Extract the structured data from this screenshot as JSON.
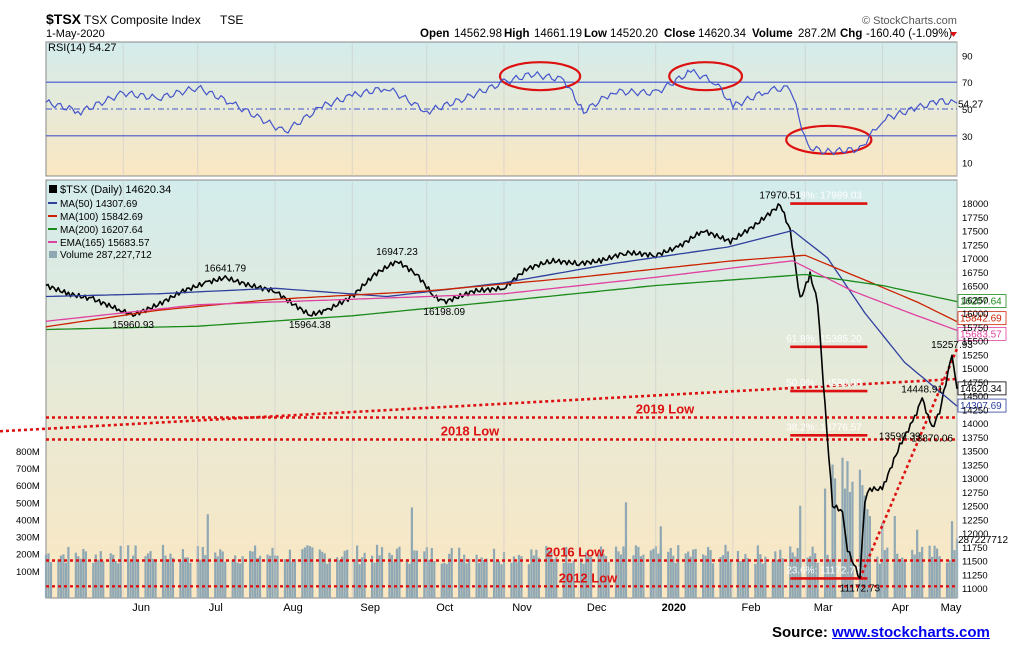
{
  "header": {
    "symbol": "$TSX",
    "name": "TSX Composite Index",
    "exchange": "TSE",
    "date": "1-May-2020",
    "open_label": "Open",
    "open": "14562.98",
    "high_label": "High",
    "high": "14661.19",
    "low_label": "Low",
    "low": "14520.20",
    "close_label": "Close",
    "close": "14620.34",
    "volume_label": "Volume",
    "volume": "287.2M",
    "chg_label": "Chg",
    "chg": "-160.40 (-1.09%)",
    "watermark": "© StockCharts.com"
  },
  "source": {
    "label": "Source:",
    "link": "www.stockcharts.com"
  },
  "colors": {
    "price": "#000000",
    "ma50": "#2e3f9e",
    "ma100": "#cc2200",
    "ma200": "#1a8a1a",
    "ema165": "#e040a0",
    "volume": "#8fa8b4",
    "rsi": "#4455cc",
    "annotation": "#dd1111",
    "panel_top": "#d3ecec",
    "panel_bottom": "#fbe7c2"
  },
  "chart_data": [
    {
      "type": "line",
      "panel": "rsi",
      "legend": "RSI(14) 54.27",
      "current_label": "54.27",
      "ylim": [
        0,
        100
      ],
      "yticks": [
        "90",
        "70",
        "50",
        "30",
        "10"
      ],
      "reference_lines": [
        70,
        50,
        30
      ],
      "points": [
        {
          "x": "2019-05-01",
          "y": 55
        },
        {
          "x": "2019-05-15",
          "y": 48
        },
        {
          "x": "2019-06-01",
          "y": 62
        },
        {
          "x": "2019-06-15",
          "y": 58
        },
        {
          "x": "2019-07-01",
          "y": 66
        },
        {
          "x": "2019-07-15",
          "y": 54
        },
        {
          "x": "2019-08-05",
          "y": 33
        },
        {
          "x": "2019-08-20",
          "y": 52
        },
        {
          "x": "2019-09-01",
          "y": 60
        },
        {
          "x": "2019-09-15",
          "y": 66
        },
        {
          "x": "2019-10-01",
          "y": 48
        },
        {
          "x": "2019-10-15",
          "y": 57
        },
        {
          "x": "2019-11-01",
          "y": 70
        },
        {
          "x": "2019-11-12",
          "y": 76
        },
        {
          "x": "2019-11-25",
          "y": 72
        },
        {
          "x": "2019-12-03",
          "y": 48
        },
        {
          "x": "2019-12-15",
          "y": 63
        },
        {
          "x": "2020-01-01",
          "y": 62
        },
        {
          "x": "2020-01-15",
          "y": 78
        },
        {
          "x": "2020-01-25",
          "y": 70
        },
        {
          "x": "2020-02-01",
          "y": 52
        },
        {
          "x": "2020-02-15",
          "y": 64
        },
        {
          "x": "2020-02-24",
          "y": 66
        },
        {
          "x": "2020-03-02",
          "y": 22
        },
        {
          "x": "2020-03-09",
          "y": 18
        },
        {
          "x": "2020-03-16",
          "y": 19
        },
        {
          "x": "2020-03-23",
          "y": 20
        },
        {
          "x": "2020-04-01",
          "y": 42
        },
        {
          "x": "2020-04-15",
          "y": 51
        },
        {
          "x": "2020-04-24",
          "y": 56
        },
        {
          "x": "2020-05-01",
          "y": 54.27
        }
      ],
      "highlighted_zones": [
        {
          "start": "2019-11-01",
          "end": "2019-11-30",
          "level": 70
        },
        {
          "start": "2020-01-08",
          "end": "2020-02-03",
          "level": 70
        },
        {
          "start": "2020-02-24",
          "end": "2020-03-26",
          "level": 30
        }
      ]
    },
    {
      "type": "line",
      "panel": "price",
      "title": "$TSX (Daily) 14620.34",
      "ylim": [
        10850,
        18300
      ],
      "yticks": [
        "18000",
        "17750",
        "17500",
        "17250",
        "17000",
        "16750",
        "16500",
        "16250",
        "16000",
        "15750",
        "15500",
        "15250",
        "15000",
        "14750",
        "14500",
        "14250",
        "14000",
        "13750",
        "13500",
        "13250",
        "13000",
        "12750",
        "12500",
        "12250",
        "12000",
        "11750",
        "11500",
        "11250",
        "11000"
      ],
      "xticks": [
        {
          "label": "Jun",
          "x": "2019-06-01"
        },
        {
          "label": "Jul",
          "x": "2019-07-01"
        },
        {
          "label": "Aug",
          "x": "2019-08-01"
        },
        {
          "label": "Sep",
          "x": "2019-09-01"
        },
        {
          "label": "Oct",
          "x": "2019-10-01"
        },
        {
          "label": "Nov",
          "x": "2019-11-01"
        },
        {
          "label": "Dec",
          "x": "2019-12-01"
        },
        {
          "label": "2020",
          "x": "2020-01-01"
        },
        {
          "label": "Feb",
          "x": "2020-02-01"
        },
        {
          "label": "Mar",
          "x": "2020-03-01"
        },
        {
          "label": "Apr",
          "x": "2020-04-01"
        },
        {
          "label": "May",
          "x": "2020-05-01"
        }
      ],
      "series": [
        {
          "name": "$TSX (Daily) 14620.34",
          "color": "#000000",
          "width": 1.6,
          "points": [
            {
              "x": "2019-05-01",
              "y": 16500
            },
            {
              "x": "2019-05-10",
              "y": 16350
            },
            {
              "x": "2019-05-20",
              "y": 16250
            },
            {
              "x": "2019-05-31",
              "y": 16050
            },
            {
              "x": "2019-06-05",
              "y": 15961
            },
            {
              "x": "2019-06-15",
              "y": 16150
            },
            {
              "x": "2019-06-25",
              "y": 16400
            },
            {
              "x": "2019-07-05",
              "y": 16560
            },
            {
              "x": "2019-07-12",
              "y": 16642
            },
            {
              "x": "2019-07-22",
              "y": 16500
            },
            {
              "x": "2019-08-01",
              "y": 16400
            },
            {
              "x": "2019-08-07",
              "y": 16200
            },
            {
              "x": "2019-08-15",
              "y": 15964
            },
            {
              "x": "2019-08-22",
              "y": 16050
            },
            {
              "x": "2019-09-01",
              "y": 16300
            },
            {
              "x": "2019-09-10",
              "y": 16700
            },
            {
              "x": "2019-09-19",
              "y": 16947
            },
            {
              "x": "2019-09-27",
              "y": 16700
            },
            {
              "x": "2019-10-04",
              "y": 16300
            },
            {
              "x": "2019-10-08",
              "y": 16198
            },
            {
              "x": "2019-10-20",
              "y": 16400
            },
            {
              "x": "2019-11-01",
              "y": 16450
            },
            {
              "x": "2019-11-10",
              "y": 16800
            },
            {
              "x": "2019-11-20",
              "y": 16950
            },
            {
              "x": "2019-12-01",
              "y": 16900
            },
            {
              "x": "2019-12-10",
              "y": 16950
            },
            {
              "x": "2019-12-20",
              "y": 17100
            },
            {
              "x": "2020-01-01",
              "y": 17050
            },
            {
              "x": "2020-01-10",
              "y": 17200
            },
            {
              "x": "2020-01-20",
              "y": 17500
            },
            {
              "x": "2020-01-31",
              "y": 17300
            },
            {
              "x": "2020-02-10",
              "y": 17600
            },
            {
              "x": "2020-02-20",
              "y": 17971
            },
            {
              "x": "2020-02-24",
              "y": 17500
            },
            {
              "x": "2020-02-28",
              "y": 16250
            },
            {
              "x": "2020-03-03",
              "y": 16700
            },
            {
              "x": "2020-03-06",
              "y": 16200
            },
            {
              "x": "2020-03-09",
              "y": 14300
            },
            {
              "x": "2020-03-12",
              "y": 12500
            },
            {
              "x": "2020-03-16",
              "y": 12400
            },
            {
              "x": "2020-03-18",
              "y": 11700
            },
            {
              "x": "2020-03-23",
              "y": 11173
            },
            {
              "x": "2020-03-25",
              "y": 12600
            },
            {
              "x": "2020-03-27",
              "y": 12800
            },
            {
              "x": "2020-04-01",
              "y": 12800
            },
            {
              "x": "2020-04-08",
              "y": 13590
            },
            {
              "x": "2020-04-14",
              "y": 14100
            },
            {
              "x": "2020-04-17",
              "y": 14449
            },
            {
              "x": "2020-04-21",
              "y": 13900
            },
            {
              "x": "2020-04-24",
              "y": 14200
            },
            {
              "x": "2020-04-29",
              "y": 15258
            },
            {
              "x": "2020-05-01",
              "y": 14620.34
            }
          ]
        },
        {
          "name": "MA(50) 14307.69",
          "color": "#2e3f9e",
          "width": 1.3,
          "points": [
            {
              "x": "2019-05-01",
              "y": 16300
            },
            {
              "x": "2019-06-15",
              "y": 16350
            },
            {
              "x": "2019-08-01",
              "y": 16450
            },
            {
              "x": "2019-09-15",
              "y": 16300
            },
            {
              "x": "2019-11-01",
              "y": 16550
            },
            {
              "x": "2019-12-15",
              "y": 16900
            },
            {
              "x": "2020-01-30",
              "y": 17200
            },
            {
              "x": "2020-02-25",
              "y": 17500
            },
            {
              "x": "2020-03-10",
              "y": 17000
            },
            {
              "x": "2020-03-25",
              "y": 16000
            },
            {
              "x": "2020-04-10",
              "y": 15100
            },
            {
              "x": "2020-05-01",
              "y": 14307.69
            }
          ]
        },
        {
          "name": "MA(100) 15842.69",
          "color": "#cc2200",
          "width": 1.3,
          "points": [
            {
              "x": "2019-05-01",
              "y": 15750
            },
            {
              "x": "2019-06-15",
              "y": 16050
            },
            {
              "x": "2019-08-01",
              "y": 16250
            },
            {
              "x": "2019-10-01",
              "y": 16400
            },
            {
              "x": "2019-12-01",
              "y": 16650
            },
            {
              "x": "2020-02-01",
              "y": 16950
            },
            {
              "x": "2020-03-01",
              "y": 17050
            },
            {
              "x": "2020-03-25",
              "y": 16600
            },
            {
              "x": "2020-04-15",
              "y": 16200
            },
            {
              "x": "2020-05-01",
              "y": 15842.69
            }
          ]
        },
        {
          "name": "MA(200) 16207.64",
          "color": "#1a8a1a",
          "width": 1.3,
          "points": [
            {
              "x": "2019-05-01",
              "y": 15700
            },
            {
              "x": "2019-07-01",
              "y": 15760
            },
            {
              "x": "2019-09-01",
              "y": 15950
            },
            {
              "x": "2019-11-01",
              "y": 16220
            },
            {
              "x": "2020-01-01",
              "y": 16500
            },
            {
              "x": "2020-03-01",
              "y": 16700
            },
            {
              "x": "2020-04-01",
              "y": 16500
            },
            {
              "x": "2020-05-01",
              "y": 16207.64
            }
          ]
        },
        {
          "name": "EMA(165) 15683.57",
          "color": "#e040a0",
          "width": 1.3,
          "points": [
            {
              "x": "2019-05-01",
              "y": 15850
            },
            {
              "x": "2019-07-01",
              "y": 16150
            },
            {
              "x": "2019-09-01",
              "y": 16250
            },
            {
              "x": "2019-11-01",
              "y": 16350
            },
            {
              "x": "2020-01-01",
              "y": 16650
            },
            {
              "x": "2020-02-25",
              "y": 16950
            },
            {
              "x": "2020-03-20",
              "y": 16400
            },
            {
              "x": "2020-04-15",
              "y": 15950
            },
            {
              "x": "2020-05-01",
              "y": 15683.57
            }
          ]
        }
      ],
      "right_labels": [
        {
          "text": "16207.64",
          "y": 16207.64,
          "color": "#1a8a1a"
        },
        {
          "text": "15842.69",
          "y": 15842.69,
          "color": "#cc2200"
        },
        {
          "text": "15683.57",
          "y": 15683.57,
          "color": "#e040a0"
        },
        {
          "text": "14620.34",
          "y": 14620.34,
          "color": "#000000"
        },
        {
          "text": "14307.69",
          "y": 14307.69,
          "color": "#2e3f9e"
        }
      ],
      "point_labels": [
        {
          "text": "15960.93",
          "x": "2019-06-05",
          "y": 15961,
          "pos": "below"
        },
        {
          "text": "16641.79",
          "x": "2019-07-12",
          "y": 16642,
          "pos": "above"
        },
        {
          "text": "15964.38",
          "x": "2019-08-15",
          "y": 15964,
          "pos": "below"
        },
        {
          "text": "16947.23",
          "x": "2019-09-19",
          "y": 16947,
          "pos": "above"
        },
        {
          "text": "16198.09",
          "x": "2019-10-08",
          "y": 16198,
          "pos": "below"
        },
        {
          "text": "17970.51",
          "x": "2020-02-20",
          "y": 17971,
          "pos": "above"
        },
        {
          "text": "13590.39",
          "x": "2020-04-08",
          "y": 13590,
          "pos": "above"
        },
        {
          "text": "14448.91",
          "x": "2020-04-17",
          "y": 14449,
          "pos": "above"
        },
        {
          "text": "15257.93",
          "x": "2020-04-29",
          "y": 15258,
          "pos": "above"
        },
        {
          "text": "13870.06",
          "x": "2020-04-21",
          "y": 13900,
          "pos": "below"
        },
        {
          "text": "11172.73",
          "x": "2020-03-23",
          "y": 11173,
          "pos": "below"
        }
      ],
      "fib_levels": [
        {
          "text": "18.8%: 17989.03",
          "y": 17989,
          "start": "2020-02-24",
          "end": "2020-03-26"
        },
        {
          "text": "61.8%: 15385.20",
          "y": 15385,
          "start": "2020-02-24",
          "end": "2020-03-26"
        },
        {
          "text": "50.0%: 14580.88",
          "y": 14581,
          "start": "2020-02-24",
          "end": "2020-03-26"
        },
        {
          "text": "38.2%: 13776.57",
          "y": 13777,
          "start": "2020-02-24",
          "end": "2020-03-26"
        },
        {
          "text": "23.6%: 11172.73",
          "y": 11173,
          "start": "2020-02-24",
          "end": "2020-03-26"
        }
      ],
      "horizontal_levels": [
        {
          "text": "2019 Low",
          "y": 14100
        },
        {
          "text": "2018 Low",
          "y": 13700
        },
        {
          "text": "2016 Low",
          "y": 11500
        },
        {
          "text": "2012 Low",
          "y": 11030
        }
      ],
      "trendlines": [
        {
          "style": "dotted",
          "from": {
            "x": "2019-03-25",
            "y": 13850
          },
          "to": {
            "x": "2020-05-01",
            "y": 14800
          }
        },
        {
          "style": "dotted",
          "from": {
            "x": "2020-03-23",
            "y": 11173
          },
          "to": {
            "x": "2020-05-01",
            "y": 15350
          }
        }
      ]
    },
    {
      "type": "bar",
      "panel": "volume",
      "legend": "Volume 287,227,712",
      "current_label": "287227712",
      "yticks": [
        "800M",
        "700M",
        "600M",
        "500M",
        "400M",
        "300M",
        "200M",
        "100M"
      ],
      "ylim": [
        0,
        900
      ],
      "unit": "M",
      "daily_baseline": 230,
      "points": [
        {
          "x": "2019-07-05",
          "y": 430
        },
        {
          "x": "2019-09-25",
          "y": 470
        },
        {
          "x": "2019-12-20",
          "y": 500
        },
        {
          "x": "2020-01-03",
          "y": 360
        },
        {
          "x": "2020-02-28",
          "y": 480
        },
        {
          "x": "2020-03-09",
          "y": 580
        },
        {
          "x": "2020-03-12",
          "y": 720
        },
        {
          "x": "2020-03-13",
          "y": 640
        },
        {
          "x": "2020-03-16",
          "y": 760
        },
        {
          "x": "2020-03-17",
          "y": 580
        },
        {
          "x": "2020-03-18",
          "y": 740
        },
        {
          "x": "2020-03-19",
          "y": 560
        },
        {
          "x": "2020-03-20",
          "y": 620
        },
        {
          "x": "2020-03-23",
          "y": 690
        },
        {
          "x": "2020-03-24",
          "y": 600
        },
        {
          "x": "2020-03-25",
          "y": 540
        },
        {
          "x": "2020-03-26",
          "y": 460
        },
        {
          "x": "2020-03-27",
          "y": 420
        },
        {
          "x": "2020-04-01",
          "y": 380
        },
        {
          "x": "2020-04-06",
          "y": 420
        },
        {
          "x": "2020-04-15",
          "y": 340
        },
        {
          "x": "2020-04-29",
          "y": 390
        },
        {
          "x": "2020-05-01",
          "y": 287
        }
      ]
    }
  ]
}
